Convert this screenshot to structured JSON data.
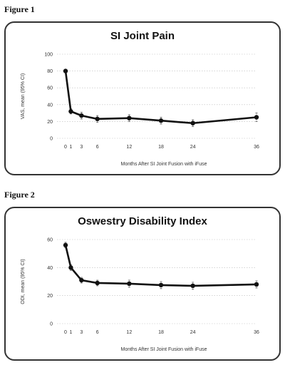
{
  "figures": [
    {
      "label": "Figure 1",
      "title": "SI Joint Pain"
    },
    {
      "label": "Figure 2",
      "title": "Oswestry Disability Index"
    }
  ],
  "chart_data": [
    {
      "type": "line",
      "title": "SI Joint Pain",
      "xlabel": "Months After SI Joint Fusion with iFuse",
      "ylabel": "VAS, mean (95% CI)",
      "x": [
        0,
        1,
        3,
        6,
        12,
        18,
        24,
        36
      ],
      "xticks": [
        0,
        1,
        3,
        6,
        12,
        18,
        24,
        36
      ],
      "yticks": [
        0,
        20,
        40,
        60,
        80,
        100
      ],
      "ylim": [
        0,
        100
      ],
      "series": [
        {
          "values": [
            80,
            32,
            27,
            23,
            24,
            21,
            18,
            25
          ],
          "ci": [
            [
              78,
              82
            ],
            [
              29,
              35
            ],
            [
              23,
              31
            ],
            [
              19,
              27
            ],
            [
              20,
              28
            ],
            [
              17,
              25
            ],
            [
              14,
              22
            ],
            [
              20,
              30
            ]
          ]
        }
      ],
      "grid": true,
      "color": "#111111"
    },
    {
      "type": "line",
      "title": "Oswestry Disability Index",
      "xlabel": "Months After SI Joint Fusion with iFuse",
      "ylabel": "ODI, mean (95% CI)",
      "x": [
        0,
        1,
        3,
        6,
        12,
        18,
        24,
        36
      ],
      "xticks": [
        0,
        1,
        3,
        6,
        12,
        18,
        24,
        36
      ],
      "yticks": [
        0,
        20,
        40,
        60
      ],
      "ylim": [
        0,
        60
      ],
      "series": [
        {
          "values": [
            56,
            40,
            31,
            29,
            28.5,
            27.5,
            27,
            28
          ],
          "ci": [
            [
              54,
              58
            ],
            [
              38,
              42
            ],
            [
              29,
              33
            ],
            [
              27,
              31
            ],
            [
              26,
              31
            ],
            [
              25,
              30
            ],
            [
              24.5,
              29.5
            ],
            [
              25.5,
              30.5
            ]
          ]
        }
      ],
      "grid": true,
      "color": "#111111"
    }
  ]
}
